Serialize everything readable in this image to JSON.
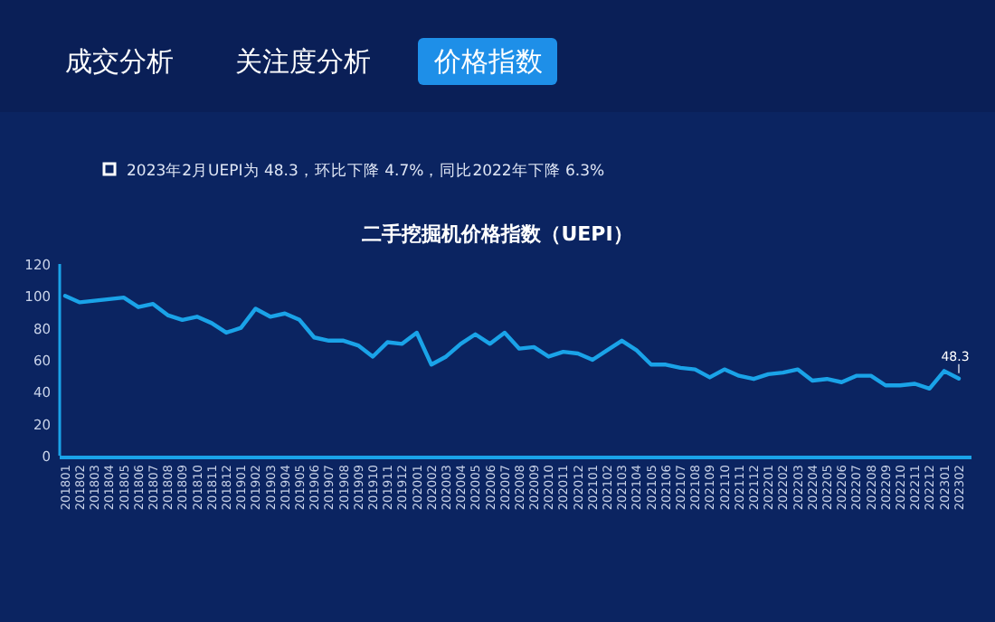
{
  "chart_data": {
    "type": "line",
    "title": "二手挖掘机价格指数（UEPI）",
    "subtitle": "2023年2月UEPI为 48.3，环比下降 4.7%，同比2022年下降 6.3%",
    "annotations": [
      "成交分析",
      "关注度分析",
      "价格指数"
    ],
    "categories": [
      "201801",
      "201802",
      "201803",
      "201804",
      "201805",
      "201806",
      "201807",
      "201808",
      "201809",
      "201810",
      "201811",
      "201812",
      "201901",
      "201902",
      "201903",
      "201904",
      "201905",
      "201906",
      "201907",
      "201908",
      "201909",
      "201910",
      "201911",
      "201912",
      "202001",
      "202002",
      "202003",
      "202004",
      "202005",
      "202006",
      "202007",
      "202008",
      "202009",
      "202010",
      "202011",
      "202012",
      "202101",
      "202102",
      "202103",
      "202104",
      "202105",
      "202106",
      "202107",
      "202108",
      "202109",
      "202110",
      "202111",
      "202112",
      "202201",
      "202202",
      "202203",
      "202204",
      "202205",
      "202206",
      "202207",
      "202208",
      "202209",
      "202210",
      "202211",
      "202212",
      "202301",
      "202302"
    ],
    "series": [
      {
        "color": "#1aa3e8",
        "values": [
          100,
          96,
          97,
          98,
          99,
          93,
          95,
          88,
          85,
          87,
          83,
          77,
          80,
          92,
          87,
          89,
          85,
          74,
          72,
          72,
          69,
          62,
          71,
          70,
          77,
          57,
          62,
          70,
          76,
          70,
          77,
          67,
          68,
          62,
          65,
          64,
          60,
          66,
          72,
          66,
          57,
          57,
          55,
          54,
          49,
          54,
          50,
          48,
          51,
          52,
          54,
          47,
          48,
          46,
          50,
          50,
          44,
          44,
          45,
          42,
          53,
          48.3
        ],
        "value_labels": [
          null,
          null,
          null,
          null,
          null,
          null,
          null,
          null,
          null,
          null,
          null,
          null,
          null,
          null,
          null,
          null,
          null,
          null,
          null,
          null,
          null,
          null,
          null,
          null,
          null,
          null,
          null,
          null,
          null,
          null,
          null,
          null,
          null,
          null,
          null,
          null,
          null,
          null,
          null,
          null,
          null,
          null,
          null,
          null,
          null,
          null,
          null,
          null,
          null,
          null,
          null,
          null,
          null,
          null,
          null,
          null,
          null,
          null,
          null,
          null,
          null,
          "48.3"
        ]
      }
    ],
    "ylim": [
      0,
      120
    ],
    "yticks": [
      0,
      20,
      40,
      60,
      80,
      100,
      120
    ],
    "grid": false,
    "marker": "none",
    "line_style": "solid"
  }
}
